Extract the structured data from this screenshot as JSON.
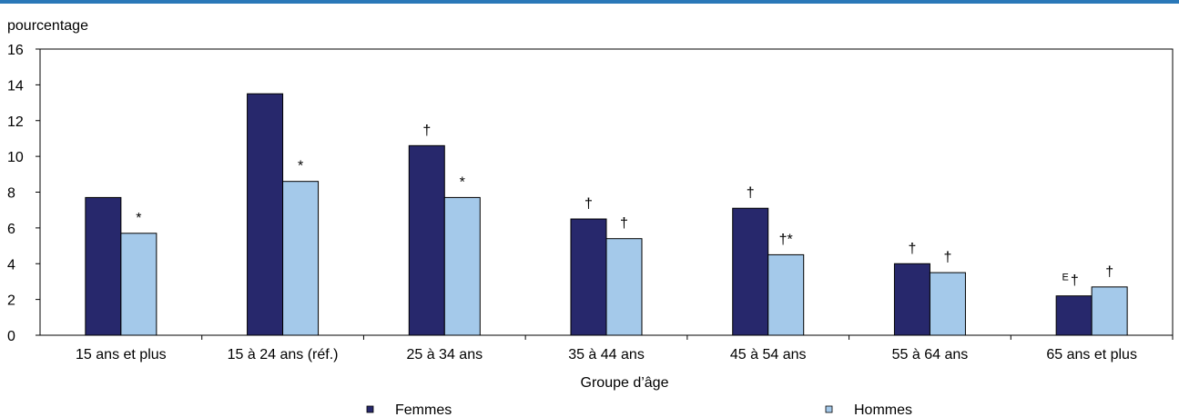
{
  "chart_data": {
    "type": "bar",
    "unit_label": "pourcentage",
    "xlabel": "Groupe d’âge",
    "ylim": [
      0,
      16
    ],
    "yticks": [
      0,
      2,
      4,
      6,
      8,
      10,
      12,
      14,
      16
    ],
    "grid": false,
    "legend_position": "bottom",
    "categories": [
      "15 ans et plus",
      "15 à 24 ans (réf.)",
      "25 à 34 ans",
      "35 à 44 ans",
      "45 à 54 ans",
      "55 à 64 ans",
      "65 ans et plus"
    ],
    "series": [
      {
        "name": "Femmes",
        "color": "#27286c",
        "values": [
          7.7,
          13.5,
          10.6,
          6.5,
          7.1,
          4.0,
          2.2
        ],
        "annotations": [
          "",
          "",
          "†",
          "†",
          "†",
          "†",
          "†"
        ],
        "superscripts": [
          "",
          "",
          "",
          "",
          "",
          "",
          "E"
        ]
      },
      {
        "name": "Hommes",
        "color": "#a4c9ea",
        "values": [
          5.7,
          8.6,
          7.7,
          5.4,
          4.5,
          3.5,
          2.7
        ],
        "annotations": [
          "*",
          "*",
          "*",
          "†",
          "†*",
          "†",
          "†"
        ],
        "superscripts": [
          "",
          "",
          "",
          "",
          "",
          "",
          ""
        ]
      }
    ]
  }
}
